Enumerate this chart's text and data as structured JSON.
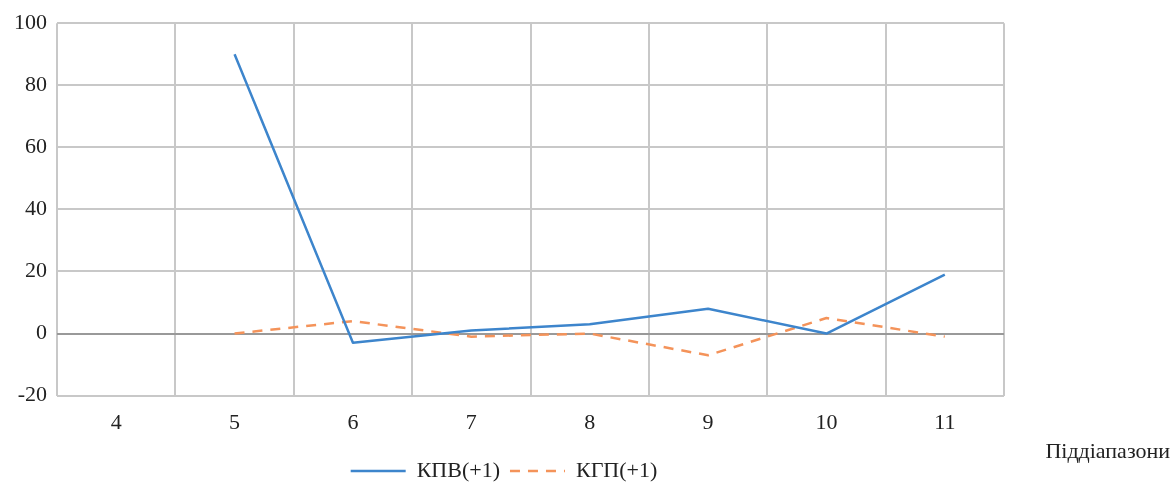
{
  "chart_data": {
    "type": "line",
    "xlabel": "Піддіапазони",
    "categories": [
      "4",
      "5",
      "6",
      "7",
      "8",
      "9",
      "10",
      "11"
    ],
    "series": [
      {
        "name": "КПВ(+1)",
        "color": "#3d85cc",
        "line_style": "solid",
        "values": [
          null,
          90,
          -3,
          1,
          3,
          8,
          0,
          19
        ]
      },
      {
        "name": "КГП(+1)",
        "color": "#f4935a",
        "line_style": "dashed",
        "values": [
          null,
          0,
          4,
          -1,
          0,
          -7,
          5,
          -1
        ]
      }
    ],
    "ylim": [
      -20,
      100
    ],
    "yticks": [
      -20,
      0,
      20,
      40,
      60,
      80,
      100
    ],
    "grid": true,
    "legend": "bottom",
    "marker": "none"
  }
}
